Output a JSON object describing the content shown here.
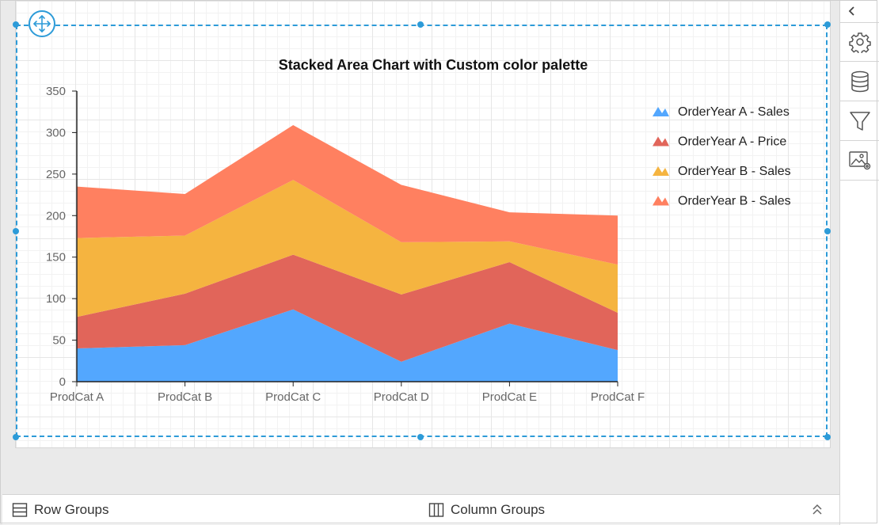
{
  "bottom_bar": {
    "row_groups_label": "Row Groups",
    "column_groups_label": "Column Groups"
  },
  "right_toolbar": {
    "items": [
      "settings",
      "data-source",
      "filter",
      "image-properties"
    ]
  },
  "colors": {
    "selection": "#2d9bd8",
    "series": [
      "#53a7fe",
      "#e1655a",
      "#f5b440",
      "#ff8060"
    ]
  },
  "chart_data": {
    "type": "area",
    "stacked": true,
    "title": "Stacked Area Chart with Custom color palette",
    "categories": [
      "ProdCat A",
      "ProdCat B",
      "ProdCat C",
      "ProdCat D",
      "ProdCat E",
      "ProdCat F"
    ],
    "series": [
      {
        "name": "OrderYear A - Sales",
        "color": "#53a7fe",
        "values": [
          40,
          44,
          87,
          24,
          70,
          38
        ]
      },
      {
        "name": "OrderYear A - Price",
        "color": "#e1655a",
        "values": [
          38,
          62,
          66,
          81,
          74,
          45
        ]
      },
      {
        "name": "OrderYear B - Sales",
        "color": "#f5b440",
        "values": [
          95,
          70,
          90,
          63,
          25,
          58
        ]
      },
      {
        "name": "OrderYear B - Sales",
        "color": "#ff8060",
        "values": [
          62,
          50,
          66,
          69,
          35,
          59
        ]
      }
    ],
    "ylim": [
      0,
      350
    ],
    "yticks": [
      0,
      50,
      100,
      150,
      200,
      250,
      300,
      350
    ],
    "legend_position": "right",
    "xlabel": "",
    "ylabel": ""
  }
}
